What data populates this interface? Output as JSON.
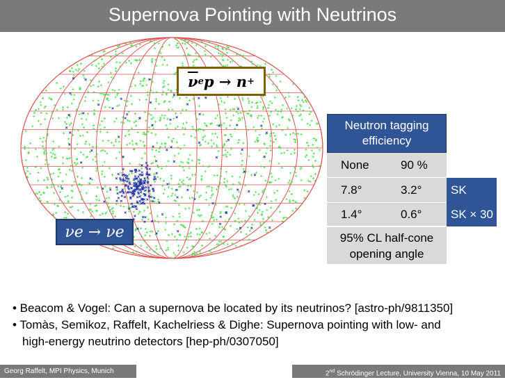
{
  "title": "Supernova Pointing with Neutrinos",
  "formula_top": {
    "nu": "ν",
    "e": "e",
    "rest": " p → n",
    "sup": "+"
  },
  "formula_bottom": "νe → νe",
  "table": {
    "header": "Neutron tagging efficiency",
    "col1": "None",
    "col2": "90 %",
    "rows": [
      {
        "a": "7.8°",
        "b": "3.2°",
        "label": "SK"
      },
      {
        "a": "1.4°",
        "b": "0.6°",
        "label": "SK × 30"
      }
    ],
    "note": "95% CL half-cone opening angle"
  },
  "bullets": [
    "• Beacom & Vogel: Can a supernova be located by its neutrinos? [astro-ph/9811350]",
    "• Tomàs, Semikoz, Raffelt, Kachelriess & Dighe: Supernova pointing with low- and",
    "high-energy neutrino detectors [hep-ph/0307050]"
  ],
  "footer_left": "Georg Raffelt, MPI Physics, Munich",
  "footer_right": {
    "nd": "nd",
    "text": " Schrödinger Lecture, University Vienna, 10 May 2011",
    "prefix": "2"
  },
  "colors": {
    "grid": "#e05050",
    "green": "#44dd44",
    "blue": "#2233aa",
    "title_bg": "#7a7a7a",
    "box_blue": "#2f5597"
  }
}
